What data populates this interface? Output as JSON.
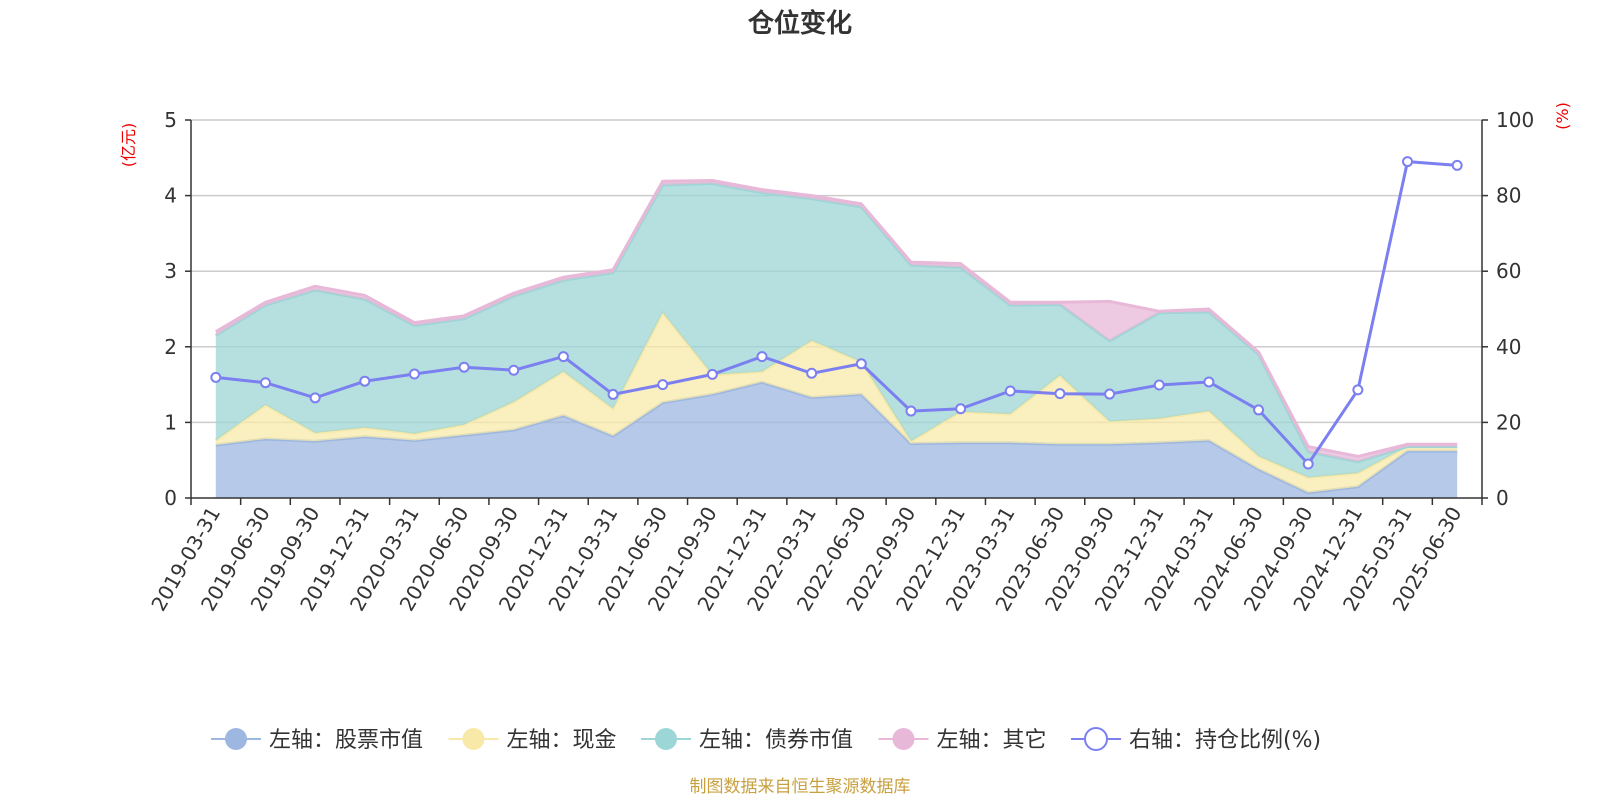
{
  "chart_data": {
    "type": "area",
    "title": "仓位变化",
    "source": "制图数据来自恒生聚源数据库",
    "x": [
      "2019-03-31",
      "2019-06-30",
      "2019-09-30",
      "2019-12-31",
      "2020-03-31",
      "2020-06-30",
      "2020-09-30",
      "2020-12-31",
      "2021-03-31",
      "2021-06-30",
      "2021-09-30",
      "2021-12-31",
      "2022-03-31",
      "2022-06-30",
      "2022-09-30",
      "2022-12-31",
      "2023-03-31",
      "2023-06-30",
      "2023-09-30",
      "2023-12-31",
      "2024-03-31",
      "2024-06-30",
      "2024-09-30",
      "2024-12-31",
      "2025-03-31",
      "2025-06-30"
    ],
    "left_axis": {
      "unit": "(亿元)",
      "ylim": [
        0,
        5
      ],
      "ticks": [
        "0",
        "1",
        "2",
        "3",
        "4",
        "5"
      ]
    },
    "right_axis": {
      "unit": "(%)",
      "ylim": [
        0,
        100
      ],
      "ticks": [
        "0",
        "20",
        "40",
        "60",
        "80",
        "100"
      ]
    },
    "stacked_series": [
      {
        "name": "左轴：股票市值",
        "color": "#9db7e0",
        "values": [
          0.7,
          0.78,
          0.75,
          0.81,
          0.76,
          0.83,
          0.9,
          1.09,
          0.82,
          1.26,
          1.37,
          1.53,
          1.33,
          1.37,
          0.72,
          0.73,
          0.73,
          0.71,
          0.71,
          0.73,
          0.76,
          0.38,
          0.07,
          0.15,
          0.62,
          0.62
        ]
      },
      {
        "name": "左轴：现金",
        "color": "#f8e9a8",
        "values": [
          0.06,
          0.45,
          0.11,
          0.12,
          0.09,
          0.14,
          0.37,
          0.58,
          0.36,
          1.19,
          0.26,
          0.14,
          0.75,
          0.43,
          0.03,
          0.41,
          0.38,
          0.91,
          0.3,
          0.32,
          0.39,
          0.17,
          0.2,
          0.18,
          0.06,
          0.06
        ]
      },
      {
        "name": "左轴：债券市值",
        "color": "#9dd6d6",
        "values": [
          1.39,
          1.32,
          1.89,
          1.7,
          1.43,
          1.4,
          1.4,
          1.21,
          1.8,
          1.69,
          2.53,
          2.37,
          1.88,
          2.05,
          2.33,
          1.91,
          1.44,
          0.94,
          1.07,
          1.4,
          1.31,
          1.35,
          0.34,
          0.15,
          0.0,
          0.0
        ]
      },
      {
        "name": "左轴：其它",
        "color": "#e8b8d8",
        "values": [
          0.05,
          0.04,
          0.05,
          0.05,
          0.04,
          0.04,
          0.04,
          0.04,
          0.04,
          0.05,
          0.04,
          0.04,
          0.04,
          0.04,
          0.04,
          0.05,
          0.04,
          0.03,
          0.52,
          0.02,
          0.04,
          0.03,
          0.07,
          0.07,
          0.03,
          0.03
        ]
      }
    ],
    "line_series": {
      "name": "右轴：持仓比例(%)",
      "color": "#7b7ff0",
      "values": [
        31.9,
        30.5,
        26.5,
        30.9,
        32.8,
        34.6,
        33.8,
        37.4,
        27.4,
        30.0,
        32.7,
        37.4,
        33.0,
        35.5,
        23.0,
        23.6,
        28.3,
        27.6,
        27.5,
        29.9,
        30.7,
        23.3,
        9.0,
        28.6,
        89.0,
        88.0
      ]
    }
  }
}
